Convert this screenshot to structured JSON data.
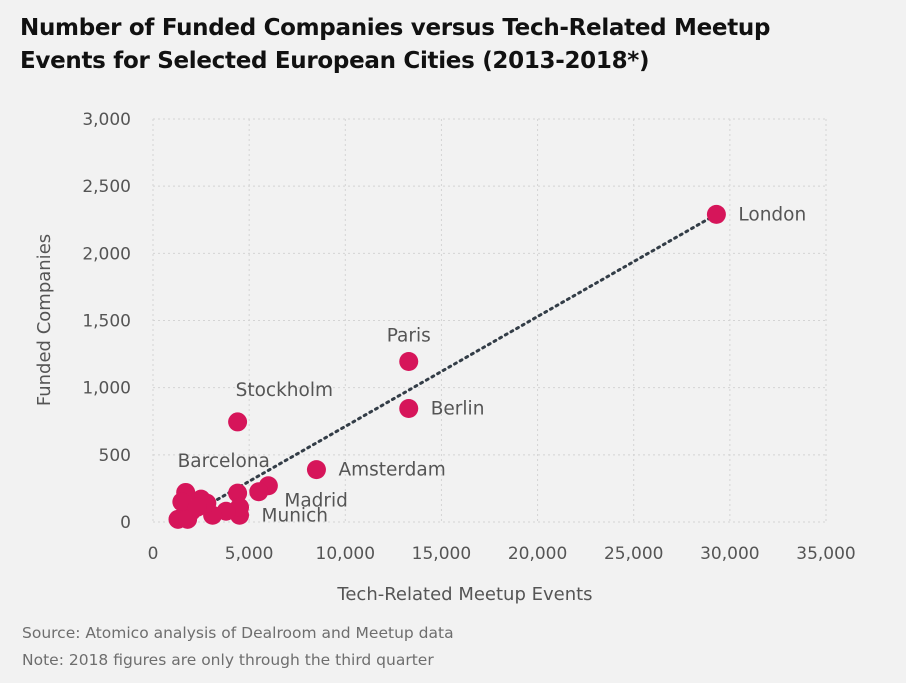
{
  "title_lines": [
    "Number of Funded Companies versus Tech-Related Meetup",
    "Events for Selected European Cities (2013-2018*)"
  ],
  "footer": {
    "source": "Source: Atomico analysis of Dealroom and Meetup data",
    "note": "Note: 2018 figures are only through the third quarter"
  },
  "colors": {
    "point": "#d6155a",
    "trend": "#333d47",
    "grid": "#d4d4d4",
    "text": "#555555",
    "background": "#f2f2f2"
  },
  "chart_data": {
    "type": "scatter",
    "title": "Number of Funded Companies versus Tech-Related Meetup Events for Selected European Cities (2013-2018*)",
    "xlabel": "Tech-Related Meetup Events",
    "ylabel": "Funded Companies",
    "xlim": [
      0,
      35000
    ],
    "ylim": [
      0,
      3000
    ],
    "xticks": [
      0,
      5000,
      10000,
      15000,
      20000,
      25000,
      30000,
      35000
    ],
    "yticks": [
      0,
      500,
      1000,
      1500,
      2000,
      2500,
      3000
    ],
    "grid": true,
    "points": [
      {
        "x": 29300,
        "y": 2290,
        "label": "London",
        "label_pos": "right"
      },
      {
        "x": 13300,
        "y": 1195,
        "label": "Paris",
        "label_pos": "top"
      },
      {
        "x": 13300,
        "y": 845,
        "label": "Berlin",
        "label_pos": "right"
      },
      {
        "x": 4400,
        "y": 745,
        "label": "Stockholm",
        "label_pos": "top-right"
      },
      {
        "x": 8500,
        "y": 390,
        "label": "Amsterdam",
        "label_pos": "right"
      },
      {
        "x": 6000,
        "y": 270,
        "label": "Madrid",
        "label_pos": "bottom-right"
      },
      {
        "x": 4500,
        "y": 50,
        "label": "Munich",
        "label_pos": "right"
      },
      {
        "x": 4400,
        "y": 215,
        "label": "Barcelona",
        "label_pos": "top-left"
      },
      {
        "x": 5500,
        "y": 225,
        "label": ""
      },
      {
        "x": 4500,
        "y": 110,
        "label": ""
      },
      {
        "x": 3800,
        "y": 80,
        "label": ""
      },
      {
        "x": 3100,
        "y": 50,
        "label": ""
      },
      {
        "x": 2800,
        "y": 140,
        "label": ""
      },
      {
        "x": 2500,
        "y": 170,
        "label": ""
      },
      {
        "x": 2000,
        "y": 80,
        "label": ""
      },
      {
        "x": 1700,
        "y": 220,
        "label": ""
      },
      {
        "x": 1500,
        "y": 150,
        "label": ""
      },
      {
        "x": 1300,
        "y": 20,
        "label": ""
      },
      {
        "x": 1800,
        "y": 20,
        "label": ""
      },
      {
        "x": 2300,
        "y": 110,
        "label": ""
      }
    ],
    "trendline": {
      "style": "dotted",
      "from": {
        "x": 1300,
        "y": 0
      },
      "to": {
        "x": 29300,
        "y": 2290
      }
    }
  }
}
